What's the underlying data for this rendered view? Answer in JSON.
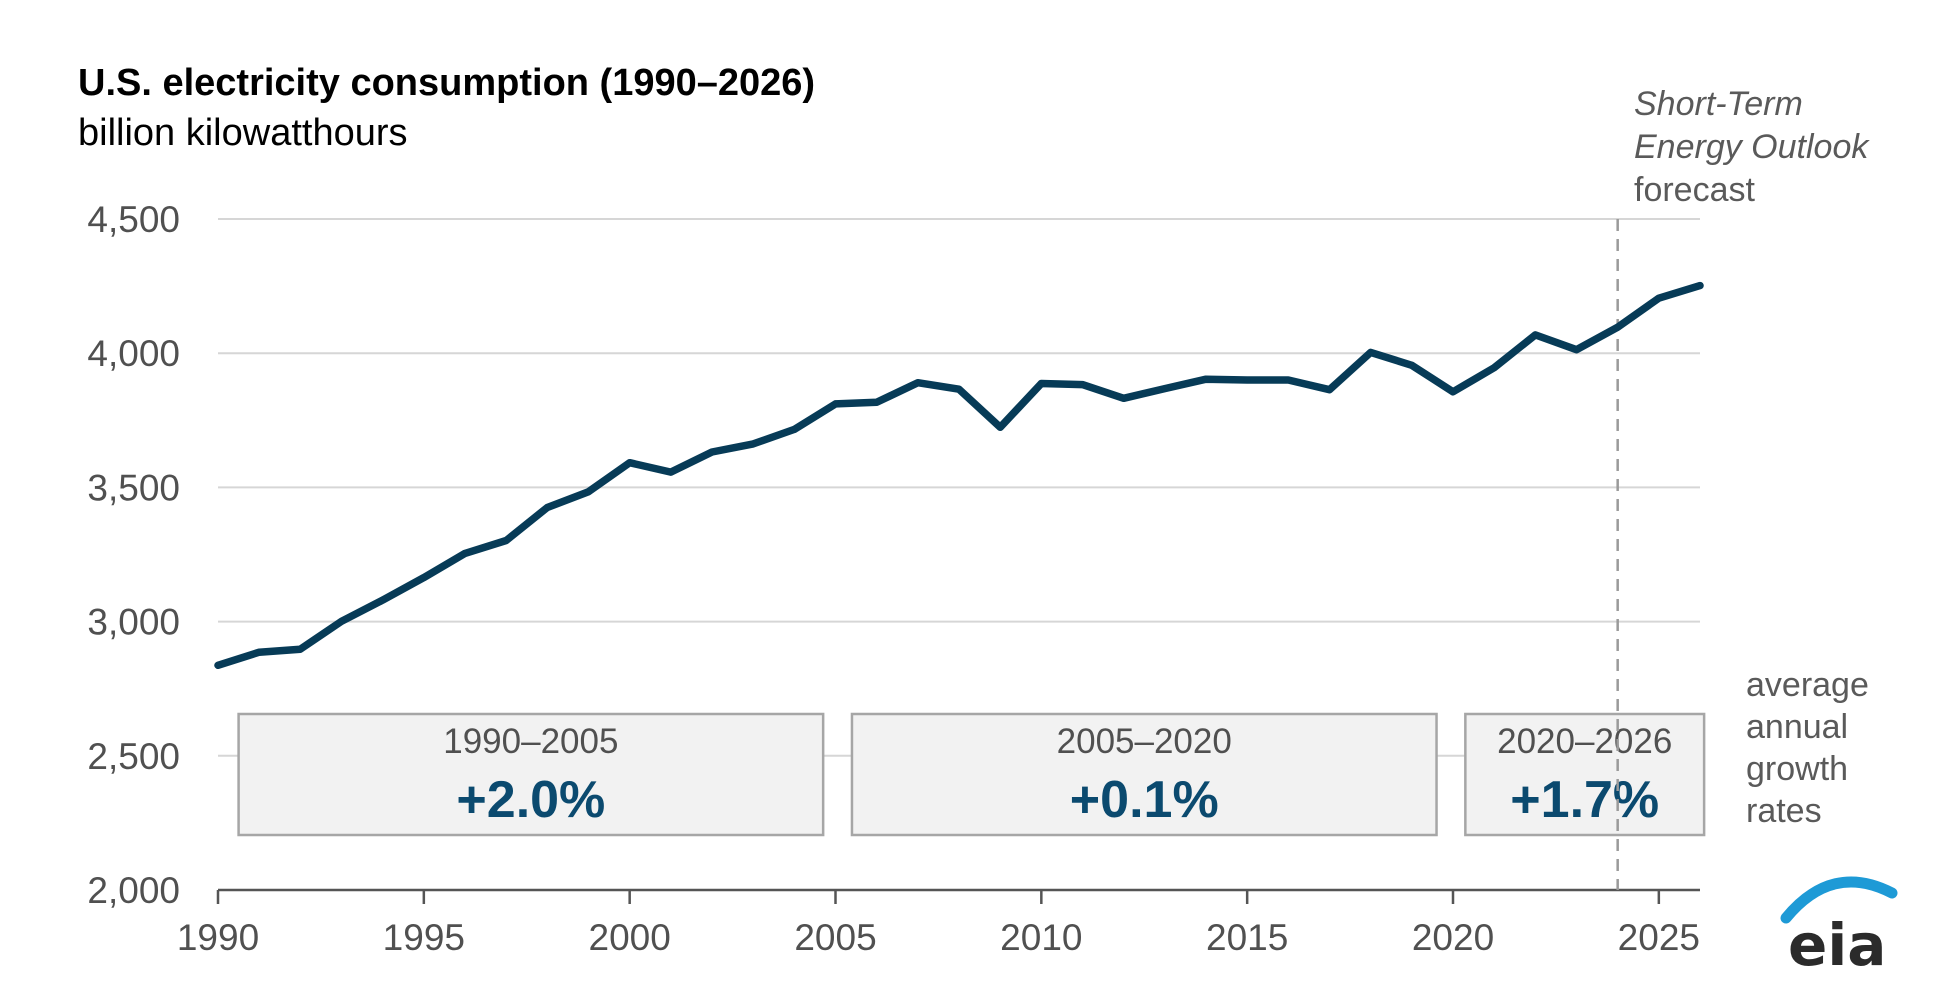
{
  "title": "U.S. electricity consumption (1990–2026)",
  "subtitle": "billion kilowatthours",
  "forecast_note": {
    "line1": "Short-Term",
    "line2": "Energy Outlook",
    "line3": "forecast"
  },
  "growth_note": [
    "average",
    "annual",
    "growth",
    "rates"
  ],
  "growth_boxes": [
    {
      "period": "1990–2005",
      "rate": "+2.0%",
      "from": 1990.5,
      "to": 2004.7
    },
    {
      "period": "2005–2020",
      "rate": "+0.1%",
      "from": 2005.4,
      "to": 2019.6
    },
    {
      "period": "2020–2026",
      "rate": "+1.7%",
      "from": 2020.3,
      "to": 2026.1
    }
  ],
  "logo": "eia",
  "colors": {
    "line": "#073b57",
    "grid": "#d6d6d6",
    "box_fill": "#f2f2f2",
    "box_border": "#a6a6a6",
    "rate_text": "#0b4a6f",
    "forecast_line": "#9a9a9a",
    "logo_arc": "#1e9ad6"
  },
  "chart_data": {
    "type": "line",
    "title": "U.S. electricity consumption (1990–2026)",
    "subtitle": "billion kilowatthours",
    "xlabel": "",
    "ylabel": "",
    "xlim": [
      1990,
      2026
    ],
    "ylim": [
      2000,
      4500
    ],
    "yticks": [
      2000,
      2500,
      3000,
      3500,
      4000,
      4500
    ],
    "ytick_labels": [
      "2,000",
      "2,500",
      "3,000",
      "3,500",
      "4,000",
      "4,500"
    ],
    "xticks": [
      1990,
      1995,
      2000,
      2005,
      2010,
      2015,
      2020,
      2025
    ],
    "xtick_labels": [
      "1990",
      "1995",
      "2000",
      "2005",
      "2010",
      "2015",
      "2020",
      "2025"
    ],
    "grid": "horizontal",
    "forecast_start": 2024,
    "x": [
      1990,
      1991,
      1992,
      1993,
      1994,
      1995,
      1996,
      1997,
      1998,
      1999,
      2000,
      2001,
      2002,
      2003,
      2004,
      2005,
      2006,
      2007,
      2008,
      2009,
      2010,
      2011,
      2012,
      2013,
      2014,
      2015,
      2016,
      2017,
      2018,
      2019,
      2020,
      2021,
      2022,
      2023,
      2024,
      2025,
      2026
    ],
    "series": [
      {
        "values": [
          2837,
          2886,
          2897,
          3001,
          3080,
          3164,
          3254,
          3302,
          3425,
          3484,
          3592,
          3557,
          3632,
          3662,
          3716,
          3811,
          3817,
          3890,
          3866,
          3724,
          3887,
          3883,
          3832,
          3868,
          3903,
          3900,
          3900,
          3864,
          4003,
          3955,
          3856,
          3946,
          4068,
          4013,
          4097,
          4205,
          4252
        ]
      }
    ]
  }
}
